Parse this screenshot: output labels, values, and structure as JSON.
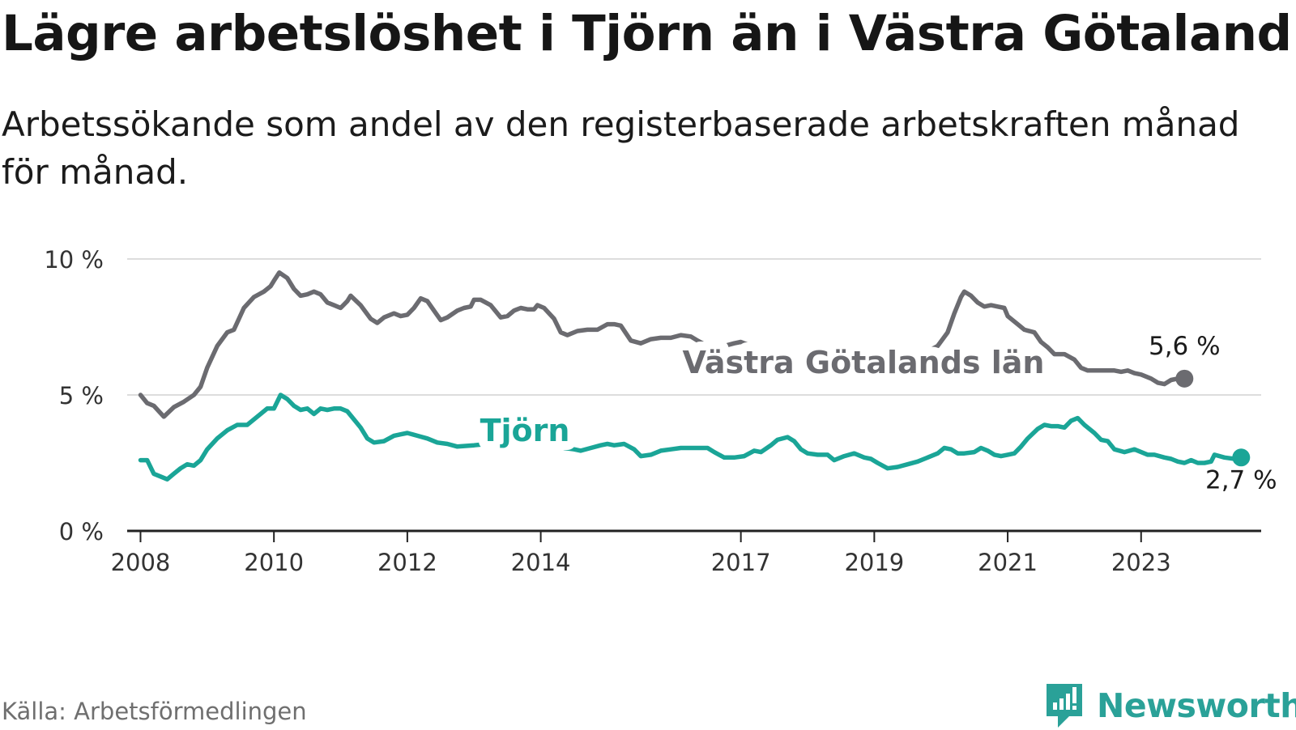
{
  "title": "Lägre arbetslöshet i Tjörn än i Västra Götaland",
  "subtitle": "Arbetssökande som andel av den registerbaserade arbetskraften månad för månad.",
  "source": "Källa: Arbetsförmedlingen",
  "brand": {
    "name": "Newsworthy",
    "icon": "newsworthy-logo-icon"
  },
  "colors": {
    "region": "#6b6b70",
    "tjorn": "#1aa597",
    "grid": "#dddddd",
    "axis": "#222222"
  },
  "chart_data": {
    "type": "line",
    "title": "Lägre arbetslöshet i Tjörn än i Västra Götaland",
    "xlabel": "",
    "ylabel": "",
    "xlim": [
      2007.8,
      2024.8
    ],
    "ylim": [
      0,
      10
    ],
    "x_ticks": [
      2008,
      2010,
      2012,
      2014,
      2017,
      2019,
      2021,
      2023
    ],
    "x_tick_labels": [
      "2008",
      "2010",
      "2012",
      "2014",
      "2017",
      "2019",
      "2021",
      "2023"
    ],
    "y_ticks": [
      0,
      5,
      10
    ],
    "y_tick_labels": [
      "0 %",
      "5 %",
      "10 %"
    ],
    "grid": true,
    "series": [
      {
        "name": "Västra Götalands län",
        "end_label": "5,6 %",
        "points": [
          [
            2008.0,
            5.0
          ],
          [
            2008.1,
            4.7
          ],
          [
            2008.2,
            4.6
          ],
          [
            2008.35,
            4.2
          ],
          [
            2008.5,
            4.55
          ],
          [
            2008.65,
            4.75
          ],
          [
            2008.8,
            5.0
          ],
          [
            2008.9,
            5.3
          ],
          [
            2009.0,
            6.0
          ],
          [
            2009.15,
            6.8
          ],
          [
            2009.3,
            7.3
          ],
          [
            2009.4,
            7.4
          ],
          [
            2009.55,
            8.2
          ],
          [
            2009.7,
            8.6
          ],
          [
            2009.85,
            8.8
          ],
          [
            2009.95,
            9.0
          ],
          [
            2010.0,
            9.2
          ],
          [
            2010.08,
            9.5
          ],
          [
            2010.2,
            9.3
          ],
          [
            2010.3,
            8.9
          ],
          [
            2010.4,
            8.65
          ],
          [
            2010.5,
            8.7
          ],
          [
            2010.6,
            8.8
          ],
          [
            2010.7,
            8.7
          ],
          [
            2010.8,
            8.4
          ],
          [
            2010.9,
            8.3
          ],
          [
            2011.0,
            8.2
          ],
          [
            2011.1,
            8.45
          ],
          [
            2011.15,
            8.65
          ],
          [
            2011.3,
            8.3
          ],
          [
            2011.45,
            7.8
          ],
          [
            2011.55,
            7.65
          ],
          [
            2011.65,
            7.85
          ],
          [
            2011.8,
            8.0
          ],
          [
            2011.9,
            7.9
          ],
          [
            2012.0,
            7.95
          ],
          [
            2012.1,
            8.2
          ],
          [
            2012.2,
            8.55
          ],
          [
            2012.3,
            8.45
          ],
          [
            2012.4,
            8.1
          ],
          [
            2012.5,
            7.75
          ],
          [
            2012.6,
            7.85
          ],
          [
            2012.75,
            8.1
          ],
          [
            2012.85,
            8.2
          ],
          [
            2012.95,
            8.25
          ],
          [
            2013.0,
            8.5
          ],
          [
            2013.1,
            8.5
          ],
          [
            2013.25,
            8.3
          ],
          [
            2013.4,
            7.85
          ],
          [
            2013.5,
            7.9
          ],
          [
            2013.6,
            8.1
          ],
          [
            2013.7,
            8.2
          ],
          [
            2013.8,
            8.15
          ],
          [
            2013.9,
            8.15
          ],
          [
            2013.95,
            8.3
          ],
          [
            2014.05,
            8.2
          ],
          [
            2014.2,
            7.8
          ],
          [
            2014.3,
            7.3
          ],
          [
            2014.4,
            7.2
          ],
          [
            2014.55,
            7.35
          ],
          [
            2014.7,
            7.4
          ],
          [
            2014.85,
            7.4
          ],
          [
            2015.0,
            7.6
          ],
          [
            2015.1,
            7.6
          ],
          [
            2015.2,
            7.55
          ],
          [
            2015.35,
            7.0
          ],
          [
            2015.5,
            6.9
          ],
          [
            2015.65,
            7.05
          ],
          [
            2015.8,
            7.1
          ],
          [
            2015.95,
            7.1
          ],
          [
            2016.1,
            7.2
          ],
          [
            2016.25,
            7.15
          ],
          [
            2016.35,
            7.0
          ],
          [
            2016.5,
            6.8
          ],
          [
            2016.6,
            6.75
          ],
          [
            2016.75,
            6.8
          ],
          [
            2016.9,
            6.9
          ],
          [
            2017.0,
            6.95
          ],
          [
            2017.1,
            6.85
          ],
          [
            2017.2,
            6.65
          ],
          [
            2017.4,
            6.3
          ],
          [
            2017.6,
            6.15
          ],
          [
            2017.8,
            6.0
          ],
          [
            2018.0,
            5.85
          ],
          [
            2018.2,
            5.75
          ],
          [
            2018.4,
            5.8
          ],
          [
            2018.6,
            5.95
          ],
          [
            2018.8,
            6.05
          ],
          [
            2019.0,
            6.1
          ],
          [
            2019.2,
            6.2
          ],
          [
            2019.4,
            6.35
          ],
          [
            2019.6,
            6.45
          ],
          [
            2019.8,
            6.6
          ],
          [
            2019.95,
            6.8
          ],
          [
            2020.1,
            7.3
          ],
          [
            2020.2,
            8.0
          ],
          [
            2020.3,
            8.6
          ],
          [
            2020.35,
            8.8
          ],
          [
            2020.45,
            8.65
          ],
          [
            2020.55,
            8.4
          ],
          [
            2020.65,
            8.25
          ],
          [
            2020.75,
            8.3
          ],
          [
            2020.85,
            8.25
          ],
          [
            2020.95,
            8.2
          ],
          [
            2021.0,
            7.9
          ],
          [
            2021.15,
            7.6
          ],
          [
            2021.25,
            7.4
          ],
          [
            2021.4,
            7.3
          ],
          [
            2021.5,
            6.95
          ],
          [
            2021.6,
            6.75
          ],
          [
            2021.7,
            6.5
          ],
          [
            2021.85,
            6.5
          ],
          [
            2022.0,
            6.3
          ],
          [
            2022.1,
            6.0
          ],
          [
            2022.2,
            5.9
          ],
          [
            2022.35,
            5.9
          ],
          [
            2022.5,
            5.9
          ],
          [
            2022.6,
            5.9
          ],
          [
            2022.7,
            5.85
          ],
          [
            2022.8,
            5.9
          ],
          [
            2022.9,
            5.8
          ],
          [
            2023.0,
            5.75
          ],
          [
            2023.15,
            5.6
          ],
          [
            2023.25,
            5.45
          ],
          [
            2023.35,
            5.4
          ],
          [
            2023.45,
            5.55
          ],
          [
            2023.55,
            5.6
          ],
          [
            2023.65,
            5.6
          ]
        ]
      },
      {
        "name": "Tjörn",
        "end_label": "2,7 %",
        "points": [
          [
            2008.0,
            2.6
          ],
          [
            2008.1,
            2.6
          ],
          [
            2008.2,
            2.1
          ],
          [
            2008.3,
            2.0
          ],
          [
            2008.4,
            1.9
          ],
          [
            2008.5,
            2.1
          ],
          [
            2008.6,
            2.3
          ],
          [
            2008.7,
            2.45
          ],
          [
            2008.8,
            2.4
          ],
          [
            2008.9,
            2.6
          ],
          [
            2009.0,
            3.0
          ],
          [
            2009.15,
            3.4
          ],
          [
            2009.3,
            3.7
          ],
          [
            2009.45,
            3.9
          ],
          [
            2009.6,
            3.9
          ],
          [
            2009.75,
            4.2
          ],
          [
            2009.9,
            4.5
          ],
          [
            2010.0,
            4.5
          ],
          [
            2010.1,
            5.0
          ],
          [
            2010.2,
            4.85
          ],
          [
            2010.3,
            4.6
          ],
          [
            2010.4,
            4.45
          ],
          [
            2010.5,
            4.5
          ],
          [
            2010.6,
            4.3
          ],
          [
            2010.7,
            4.5
          ],
          [
            2010.8,
            4.45
          ],
          [
            2010.9,
            4.5
          ],
          [
            2011.0,
            4.5
          ],
          [
            2011.1,
            4.4
          ],
          [
            2011.2,
            4.1
          ],
          [
            2011.3,
            3.8
          ],
          [
            2011.4,
            3.4
          ],
          [
            2011.5,
            3.25
          ],
          [
            2011.65,
            3.3
          ],
          [
            2011.8,
            3.5
          ],
          [
            2011.9,
            3.55
          ],
          [
            2012.0,
            3.6
          ],
          [
            2012.15,
            3.5
          ],
          [
            2012.3,
            3.4
          ],
          [
            2012.45,
            3.25
          ],
          [
            2012.6,
            3.2
          ],
          [
            2012.75,
            3.1
          ],
          [
            2013.0,
            3.15
          ],
          [
            2013.2,
            3.2
          ],
          [
            2013.4,
            3.25
          ],
          [
            2013.6,
            3.3
          ],
          [
            2013.8,
            3.45
          ],
          [
            2013.95,
            3.6
          ],
          [
            2014.1,
            3.45
          ],
          [
            2014.2,
            3.2
          ],
          [
            2014.35,
            3.05
          ],
          [
            2014.5,
            3.0
          ],
          [
            2014.6,
            2.95
          ],
          [
            2014.75,
            3.05
          ],
          [
            2014.9,
            3.15
          ],
          [
            2015.0,
            3.2
          ],
          [
            2015.1,
            3.15
          ],
          [
            2015.25,
            3.2
          ],
          [
            2015.4,
            3.0
          ],
          [
            2015.5,
            2.75
          ],
          [
            2015.65,
            2.8
          ],
          [
            2015.8,
            2.95
          ],
          [
            2015.95,
            3.0
          ],
          [
            2016.1,
            3.05
          ],
          [
            2016.3,
            3.05
          ],
          [
            2016.5,
            3.05
          ],
          [
            2016.6,
            2.9
          ],
          [
            2016.75,
            2.7
          ],
          [
            2016.9,
            2.7
          ],
          [
            2017.05,
            2.75
          ],
          [
            2017.2,
            2.95
          ],
          [
            2017.3,
            2.9
          ],
          [
            2017.45,
            3.15
          ],
          [
            2017.55,
            3.35
          ],
          [
            2017.7,
            3.45
          ],
          [
            2017.8,
            3.3
          ],
          [
            2017.9,
            3.0
          ],
          [
            2018.0,
            2.85
          ],
          [
            2018.15,
            2.8
          ],
          [
            2018.3,
            2.8
          ],
          [
            2018.4,
            2.6
          ],
          [
            2018.55,
            2.75
          ],
          [
            2018.7,
            2.85
          ],
          [
            2018.85,
            2.7
          ],
          [
            2018.95,
            2.65
          ],
          [
            2019.05,
            2.5
          ],
          [
            2019.2,
            2.3
          ],
          [
            2019.35,
            2.35
          ],
          [
            2019.5,
            2.45
          ],
          [
            2019.65,
            2.55
          ],
          [
            2019.8,
            2.7
          ],
          [
            2019.95,
            2.85
          ],
          [
            2020.05,
            3.05
          ],
          [
            2020.15,
            3.0
          ],
          [
            2020.25,
            2.85
          ],
          [
            2020.35,
            2.85
          ],
          [
            2020.5,
            2.9
          ],
          [
            2020.6,
            3.05
          ],
          [
            2020.7,
            2.95
          ],
          [
            2020.8,
            2.8
          ],
          [
            2020.9,
            2.75
          ],
          [
            2021.0,
            2.8
          ],
          [
            2021.1,
            2.85
          ],
          [
            2021.2,
            3.1
          ],
          [
            2021.3,
            3.4
          ],
          [
            2021.45,
            3.75
          ],
          [
            2021.55,
            3.9
          ],
          [
            2021.65,
            3.85
          ],
          [
            2021.75,
            3.85
          ],
          [
            2021.85,
            3.8
          ],
          [
            2021.95,
            4.05
          ],
          [
            2022.05,
            4.15
          ],
          [
            2022.15,
            3.9
          ],
          [
            2022.3,
            3.6
          ],
          [
            2022.4,
            3.35
          ],
          [
            2022.5,
            3.3
          ],
          [
            2022.6,
            3.0
          ],
          [
            2022.75,
            2.9
          ],
          [
            2022.9,
            3.0
          ],
          [
            2023.0,
            2.9
          ],
          [
            2023.1,
            2.8
          ],
          [
            2023.2,
            2.8
          ],
          [
            2023.35,
            2.7
          ],
          [
            2023.45,
            2.65
          ],
          [
            2023.55,
            2.55
          ],
          [
            2023.65,
            2.5
          ],
          [
            2023.75,
            2.6
          ],
          [
            2023.85,
            2.5
          ],
          [
            2023.95,
            2.5
          ],
          [
            2024.05,
            2.55
          ],
          [
            2024.1,
            2.8
          ],
          [
            2024.25,
            2.7
          ],
          [
            2024.4,
            2.65
          ],
          [
            2024.5,
            2.7
          ]
        ]
      }
    ]
  }
}
